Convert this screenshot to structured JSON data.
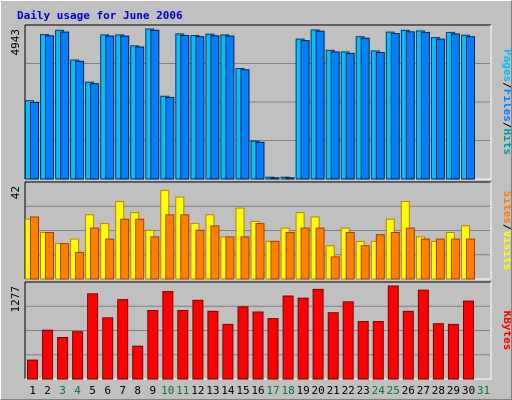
{
  "chart_data": {
    "type": "bar",
    "title": "Daily usage for June 2006",
    "x": [
      "1",
      "2",
      "3",
      "4",
      "5",
      "6",
      "7",
      "8",
      "9",
      "10",
      "11",
      "12",
      "13",
      "14",
      "15",
      "16",
      "17",
      "18",
      "19",
      "20",
      "21",
      "22",
      "23",
      "24",
      "25",
      "26",
      "27",
      "28",
      "29",
      "30",
      "31"
    ],
    "weekend_days": [
      "3",
      "4",
      "10",
      "11",
      "17",
      "18",
      "24",
      "25",
      "31"
    ],
    "colors": {
      "title": "#0000cc",
      "pages": "#00c0ff",
      "pages_dark": "#003a66",
      "files": "#0080ff",
      "files_dark": "#00224a",
      "hits": "#0099aa",
      "visits": "#ffff00",
      "sites": "#ff8000",
      "kbytes": "#ff0000",
      "weekday_label": "#000000",
      "weekend_label": "#007733"
    },
    "panels": [
      {
        "id": "hits",
        "ylabel_parts": [
          "Pages",
          "Files",
          "Hits"
        ],
        "y_max_label": "4943",
        "ylim": [
          0,
          4943
        ],
        "series": [
          {
            "name": "Hits",
            "values": [
              2580,
              4760,
              4900,
              3920,
              3190,
              4750,
              4750,
              4390,
              4943,
              2730,
              4780,
              4730,
              4770,
              4750,
              3640,
              1250,
              60,
              60,
              4610,
              4910,
              4240,
              4190,
              4690,
              4220,
              4840,
              4900,
              4880,
              4660,
              4830,
              4740,
              null
            ]
          },
          {
            "name": "Files",
            "values": [
              2520,
              4720,
              4840,
              3880,
              3140,
              4710,
              4710,
              4350,
              4900,
              2690,
              4730,
              4690,
              4720,
              4710,
              3600,
              1210,
              40,
              40,
              4560,
              4870,
              4190,
              4140,
              4640,
              4170,
              4790,
              4850,
              4830,
              4610,
              4780,
              4690,
              null
            ]
          }
        ]
      },
      {
        "id": "visits",
        "ylabel_parts": [
          "Sites",
          "Visits"
        ],
        "y_max_label": "42",
        "ylim": [
          0,
          42
        ],
        "series": [
          {
            "name": "Visits",
            "values": [
              27,
              21,
              16,
              18,
              29,
              25,
              35,
              30,
              22,
              40,
              37,
              25,
              29,
              19,
              32,
              26,
              17,
              23,
              30,
              28,
              15,
              23,
              17,
              17,
              27,
              35,
              19,
              17,
              21,
              24,
              null
            ]
          },
          {
            "name": "Sites",
            "values": [
              28,
              21,
              16,
              12,
              23,
              18,
              27,
              27,
              19,
              29,
              29,
              22,
              24,
              19,
              19,
              25,
              17,
              21,
              23,
              23,
              10,
              21,
              15,
              20,
              21,
              23,
              18,
              18,
              18,
              18,
              null
            ]
          }
        ]
      },
      {
        "id": "kbytes",
        "ylabel_parts": [
          "KBytes"
        ],
        "y_max_label": "1277",
        "ylim": [
          0,
          1277
        ],
        "series": [
          {
            "name": "KBytes",
            "values": [
              260,
              670,
              570,
              650,
              1170,
              840,
              1090,
              450,
              940,
              1200,
              940,
              1080,
              930,
              750,
              990,
              920,
              830,
              1140,
              1110,
              1230,
              910,
              1060,
              790,
              790,
              1277,
              930,
              1220,
              760,
              750,
              1070,
              null
            ]
          }
        ]
      }
    ]
  }
}
